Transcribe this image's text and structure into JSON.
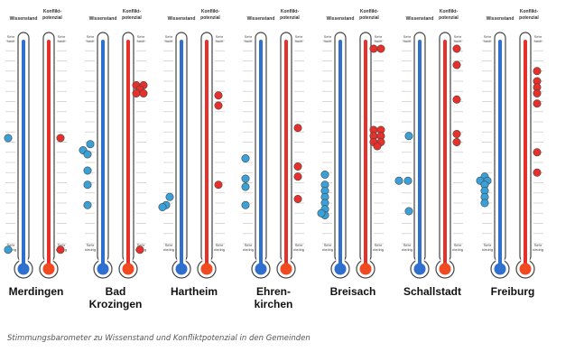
{
  "chart_data": {
    "type": "scatter",
    "title": "Stimmungsbarometer zu Wissenstand und Konfliktpotenzial in den Gemeinden",
    "scale_top_label": "Sehr hoch",
    "scale_bottom_label": "Sehr niedrig",
    "series_labels": [
      "Wissenstand",
      "Konflikt-potenzial"
    ],
    "colors": {
      "wissen": "#3aa0d8",
      "konflikt": "#e8302a",
      "wissen_fill": "#2f6fce",
      "konflikt_fill": "#f04a22",
      "outline": "#444444"
    },
    "scale_range": [
      0,
      10
    ],
    "gemeinden": [
      {
        "name": [
          "Merdingen"
        ],
        "wissen": [
          [
            0,
            5.2
          ],
          [
            0,
            -0.3
          ]
        ],
        "konflikt": [
          [
            0,
            5.2
          ],
          [
            0,
            -0.3
          ]
        ]
      },
      {
        "name": [
          "Bad",
          "Krozingen"
        ],
        "wissen": [
          [
            -0.5,
            4.6
          ],
          [
            0.3,
            4.9
          ],
          [
            0,
            4.4
          ],
          [
            0,
            3.6
          ],
          [
            0,
            2.9
          ],
          [
            0,
            1.9
          ]
        ],
        "konflikt": [
          [
            -0.4,
            7.8
          ],
          [
            0.4,
            7.8
          ],
          [
            0,
            7.6
          ],
          [
            -0.4,
            7.4
          ],
          [
            0.4,
            7.4
          ],
          [
            0,
            -0.3
          ]
        ]
      },
      {
        "name": [
          "Hartheim"
        ],
        "wissen": [
          [
            0.4,
            2.3
          ],
          [
            0,
            1.9
          ],
          [
            -0.4,
            1.8
          ]
        ],
        "konflikt": [
          [
            0,
            7.3
          ],
          [
            0,
            6.8
          ],
          [
            0,
            2.9
          ]
        ]
      },
      {
        "name": [
          "Ehren-",
          "kirchen"
        ],
        "wissen": [
          [
            0,
            4.2
          ],
          [
            0,
            3.2
          ],
          [
            0,
            2.8
          ],
          [
            0,
            1.9
          ]
        ],
        "konflikt": [
          [
            0,
            5.7
          ],
          [
            0,
            3.8
          ],
          [
            0,
            3.3
          ],
          [
            0,
            2.2
          ]
        ]
      },
      {
        "name": [
          "Breisach"
        ],
        "wissen": [
          [
            0,
            3.4
          ],
          [
            0,
            2.9
          ],
          [
            0,
            2.6
          ],
          [
            0,
            2.3
          ],
          [
            0,
            2.0
          ],
          [
            0,
            1.7
          ],
          [
            0,
            1.4
          ],
          [
            -0.4,
            1.5
          ]
        ],
        "konflikt": [
          [
            -0.4,
            9.6
          ],
          [
            0.4,
            9.6
          ],
          [
            -0.4,
            5.6
          ],
          [
            0.4,
            5.6
          ],
          [
            -0.4,
            5.3
          ],
          [
            0.4,
            5.3
          ],
          [
            -0.4,
            5.0
          ],
          [
            0.4,
            5.0
          ],
          [
            0,
            4.8
          ]
        ]
      },
      {
        "name": [
          "Schallstadt"
        ],
        "wissen": [
          [
            0.5,
            5.3
          ],
          [
            -0.6,
            3.1
          ],
          [
            0.4,
            3.1
          ],
          [
            0.5,
            1.6
          ]
        ],
        "konflikt": [
          [
            0,
            9.6
          ],
          [
            0,
            8.8
          ],
          [
            0,
            7.1
          ],
          [
            0,
            5.4
          ],
          [
            0,
            5.0
          ]
        ]
      },
      {
        "name": [
          "Freiburg"
        ],
        "wissen": [
          [
            0,
            3.3
          ],
          [
            -0.5,
            3.1
          ],
          [
            0.3,
            3.1
          ],
          [
            0,
            2.9
          ],
          [
            0,
            2.6
          ],
          [
            0,
            2.3
          ],
          [
            0,
            2.0
          ]
        ],
        "konflikt": [
          [
            0,
            8.5
          ],
          [
            0,
            8.0
          ],
          [
            0,
            7.7
          ],
          [
            0,
            7.4
          ],
          [
            0,
            6.9
          ],
          [
            0,
            4.5
          ],
          [
            0,
            3.5
          ]
        ]
      }
    ]
  },
  "caption": "Stimmungsbarometer zu Wissenstand und Konfliktpotenzial in den Gemeinden"
}
